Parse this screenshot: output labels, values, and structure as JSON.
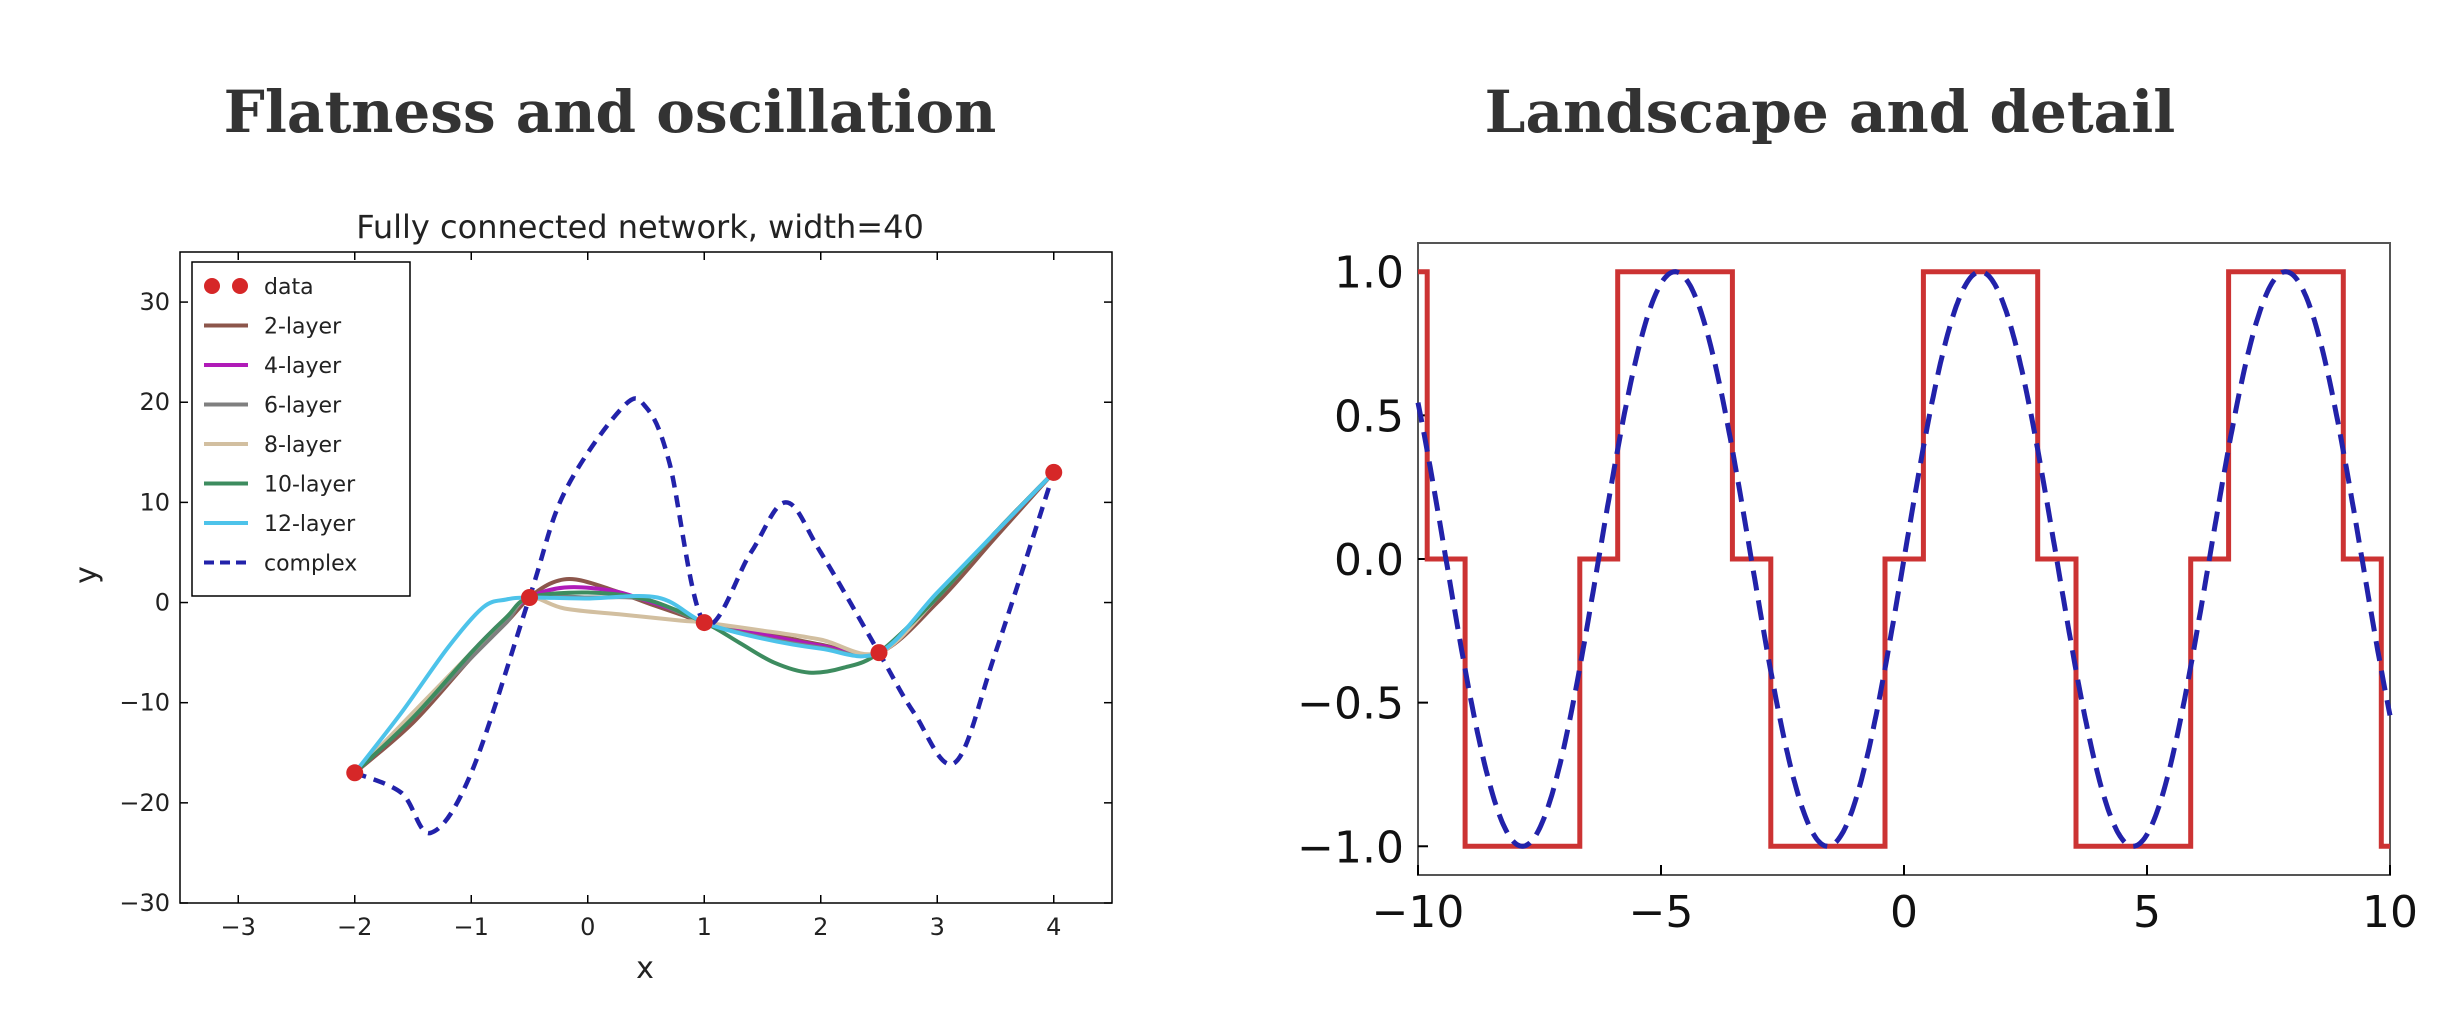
{
  "headings": {
    "left": "Flatness and oscillation",
    "right": "Landscape and detail"
  },
  "chart_data": [
    {
      "type": "line",
      "title": "Fully connected network, width=40",
      "xlabel": "x",
      "ylabel": "y",
      "xlim": [
        -3.5,
        4.5
      ],
      "ylim": [
        -30,
        35
      ],
      "xticks": [
        -3,
        -2,
        -1,
        0,
        1,
        2,
        3,
        4
      ],
      "yticks": [
        -30,
        -20,
        -10,
        0,
        10,
        20,
        30
      ],
      "grid": false,
      "legend_position": "top-left",
      "data": {
        "name": "data",
        "color": "#d62728",
        "points": [
          [
            -2,
            -17
          ],
          [
            -0.5,
            0.5
          ],
          [
            1,
            -2
          ],
          [
            2.5,
            -5
          ],
          [
            4,
            13
          ]
        ]
      },
      "series": [
        {
          "name": "2-layer",
          "color": "#8c564b",
          "style": "solid",
          "points": [
            [
              -2,
              -17
            ],
            [
              -1.5,
              -12
            ],
            [
              -1,
              -5.5
            ],
            [
              -0.7,
              -2
            ],
            [
              -0.5,
              0.5
            ],
            [
              -0.3,
              2
            ],
            [
              -0.1,
              2.3
            ],
            [
              0.2,
              1.3
            ],
            [
              0.5,
              0
            ],
            [
              0.8,
              -1.2
            ],
            [
              1,
              -2
            ],
            [
              1.5,
              -3
            ],
            [
              2,
              -4.2
            ],
            [
              2.5,
              -5
            ],
            [
              3,
              0
            ],
            [
              3.5,
              6.5
            ],
            [
              4,
              13
            ]
          ]
        },
        {
          "name": "4-layer",
          "color": "#b01bb8",
          "style": "solid",
          "points": [
            [
              -2,
              -17
            ],
            [
              -1.5,
              -11.5
            ],
            [
              -1,
              -5
            ],
            [
              -0.7,
              -1.5
            ],
            [
              -0.5,
              0.5
            ],
            [
              -0.2,
              1.5
            ],
            [
              0.2,
              1.2
            ],
            [
              0.5,
              0.2
            ],
            [
              0.8,
              -1
            ],
            [
              1,
              -2
            ],
            [
              1.5,
              -3.2
            ],
            [
              2,
              -4.3
            ],
            [
              2.5,
              -5
            ],
            [
              3,
              0.5
            ],
            [
              3.5,
              7
            ],
            [
              4,
              13
            ]
          ]
        },
        {
          "name": "6-layer",
          "color": "#7f7f7f",
          "style": "solid",
          "points": [
            [
              -2,
              -17
            ],
            [
              -1.5,
              -11.5
            ],
            [
              -1,
              -5.5
            ],
            [
              -0.7,
              -2
            ],
            [
              -0.5,
              0.5
            ],
            [
              0,
              0.5
            ],
            [
              0.5,
              0.3
            ],
            [
              1,
              -2
            ],
            [
              1.5,
              -3.5
            ],
            [
              2,
              -4.5
            ],
            [
              2.5,
              -5
            ],
            [
              3,
              0.5
            ],
            [
              3.5,
              7
            ],
            [
              4,
              13
            ]
          ]
        },
        {
          "name": "8-layer",
          "color": "#d2bfa0",
          "style": "solid",
          "points": [
            [
              -2,
              -17
            ],
            [
              -1.5,
              -11
            ],
            [
              -1,
              -5
            ],
            [
              -0.7,
              -1.5
            ],
            [
              -0.5,
              0.5
            ],
            [
              -0.2,
              -0.6
            ],
            [
              0.3,
              -1.2
            ],
            [
              0.8,
              -1.8
            ],
            [
              1,
              -2
            ],
            [
              1.5,
              -2.8
            ],
            [
              2,
              -3.7
            ],
            [
              2.5,
              -5
            ],
            [
              3,
              0.5
            ],
            [
              3.5,
              7
            ],
            [
              4,
              13
            ]
          ]
        },
        {
          "name": "10-layer",
          "color": "#3d8c5f",
          "style": "solid",
          "points": [
            [
              -2,
              -17
            ],
            [
              -1.5,
              -11.5
            ],
            [
              -1,
              -5
            ],
            [
              -0.7,
              -1.5
            ],
            [
              -0.5,
              0.5
            ],
            [
              0,
              1
            ],
            [
              0.5,
              0.3
            ],
            [
              1,
              -2
            ],
            [
              1.3,
              -4
            ],
            [
              1.6,
              -6
            ],
            [
              1.9,
              -7
            ],
            [
              2.2,
              -6.5
            ],
            [
              2.5,
              -5
            ],
            [
              3,
              0.5
            ],
            [
              3.5,
              7
            ],
            [
              4,
              13
            ]
          ]
        },
        {
          "name": "12-layer",
          "color": "#4dc3ea",
          "style": "solid",
          "points": [
            [
              -2,
              -17
            ],
            [
              -1.6,
              -11
            ],
            [
              -1.2,
              -4.5
            ],
            [
              -0.9,
              -0.5
            ],
            [
              -0.7,
              0.3
            ],
            [
              -0.5,
              0.5
            ],
            [
              0,
              0.4
            ],
            [
              0.6,
              0.5
            ],
            [
              1,
              -2
            ],
            [
              1.5,
              -3.6
            ],
            [
              2,
              -4.6
            ],
            [
              2.5,
              -5
            ],
            [
              3,
              1
            ],
            [
              3.5,
              7
            ],
            [
              4,
              13
            ]
          ]
        },
        {
          "name": "complex",
          "color": "#2222aa",
          "style": "dashed",
          "points": [
            [
              -2,
              -17
            ],
            [
              -1.6,
              -19
            ],
            [
              -1.35,
              -23
            ],
            [
              -1,
              -17
            ],
            [
              -0.5,
              0.5
            ],
            [
              -0.2,
              11
            ],
            [
              0.3,
              19.5
            ],
            [
              0.5,
              19.5
            ],
            [
              0.7,
              14
            ],
            [
              1,
              -2
            ],
            [
              1.4,
              5
            ],
            [
              1.7,
              10
            ],
            [
              2,
              5
            ],
            [
              2.5,
              -5
            ],
            [
              2.8,
              -11
            ],
            [
              3.15,
              -16
            ],
            [
              3.5,
              -5
            ],
            [
              4,
              13
            ]
          ]
        }
      ]
    },
    {
      "type": "line",
      "title": "",
      "xlim": [
        -10,
        10
      ],
      "ylim": [
        -1.1,
        1.1
      ],
      "xticks": [
        -10,
        -5,
        0,
        5,
        10
      ],
      "yticks": [
        -1.0,
        -0.5,
        0.0,
        0.5,
        1.0
      ],
      "grid": false,
      "series": [
        {
          "style": "solid",
          "color": "#cc3333",
          "function": "staircase",
          "period": 6.283
        },
        {
          "style": "dashed",
          "color": "#2222aa",
          "function": "sin",
          "period": 6.283
        }
      ]
    }
  ]
}
